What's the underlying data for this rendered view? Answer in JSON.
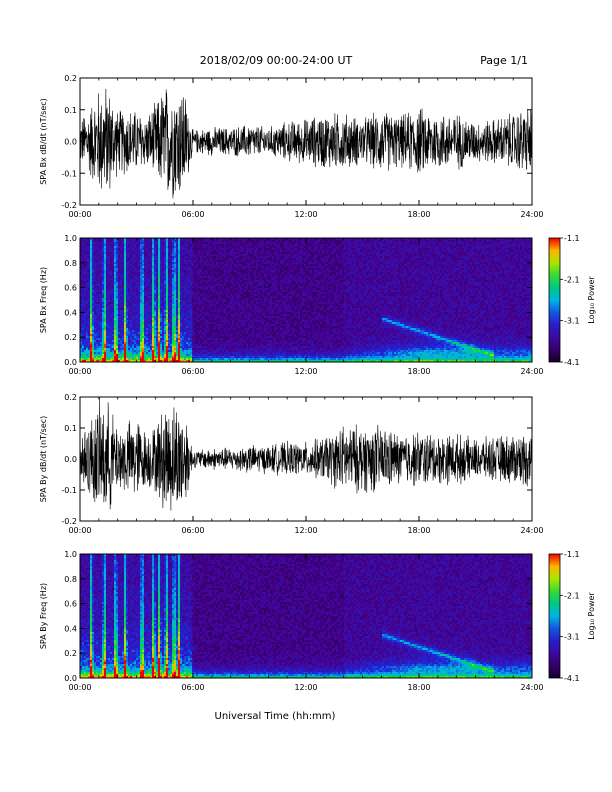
{
  "header": {
    "date_range": "2018/02/09  00:00-24:00 UT",
    "page": "Page 1/1"
  },
  "xaxis_title": "Universal Time (hh:mm)",
  "chart_data": [
    {
      "type": "line",
      "ylabel": "SPA Bx dB/dt (nT/sec)",
      "xlim": [
        0,
        24
      ],
      "ylim": [
        -0.2,
        0.2
      ],
      "x_ticks": [
        "00:00",
        "06:00",
        "12:00",
        "18:00",
        "24:00"
      ],
      "y_ticks": [
        "-0.2",
        "-0.1",
        "0.0",
        "0.1",
        "0.2"
      ],
      "series": [
        {
          "x": [
            0,
            0.5,
            1,
            1.5,
            2,
            2.5,
            3,
            3.5,
            4,
            4.5,
            5,
            5.5,
            6,
            7,
            8,
            9,
            10,
            11,
            12,
            13,
            14,
            15,
            16,
            17,
            18,
            19,
            20,
            21,
            22,
            23,
            24
          ],
          "amplitude": [
            0.08,
            0.12,
            0.19,
            0.2,
            0.11,
            0.12,
            0.11,
            0.09,
            0.13,
            0.2,
            0.2,
            0.2,
            0.04,
            0.05,
            0.05,
            0.06,
            0.05,
            0.07,
            0.08,
            0.1,
            0.1,
            0.08,
            0.11,
            0.09,
            0.12,
            0.1,
            0.1,
            0.07,
            0.08,
            0.1,
            0.13
          ]
        }
      ]
    },
    {
      "type": "heatmap",
      "ylabel": "SPA Bx Freq (Hz)",
      "colorbar_label": "Log₁₀ Power",
      "xlim": [
        0,
        24
      ],
      "ylim": [
        0.0,
        1.0
      ],
      "x_ticks": [
        "00:00",
        "06:00",
        "12:00",
        "18:00",
        "24:00"
      ],
      "y_ticks": [
        "0.0",
        "0.2",
        "0.4",
        "0.6",
        "0.8",
        "1.0"
      ],
      "colorbar_ticks": [
        "-1.1",
        "-2.1",
        "-3.1",
        "-4.1"
      ],
      "zlim": [
        -4.1,
        -1.1
      ]
    },
    {
      "type": "line",
      "ylabel": "SPA By dB/dt (nT/sec)",
      "xlim": [
        0,
        24
      ],
      "ylim": [
        -0.2,
        0.2
      ],
      "x_ticks": [
        "00:00",
        "06:00",
        "12:00",
        "18:00",
        "24:00"
      ],
      "y_ticks": [
        "-0.2",
        "-0.1",
        "0.0",
        "0.1",
        "0.2"
      ],
      "series": [
        {
          "x": [
            0,
            0.5,
            1,
            1.5,
            2,
            2.5,
            3,
            3.5,
            4,
            4.5,
            5,
            5.5,
            6,
            7,
            8,
            9,
            10,
            11,
            12,
            13,
            14,
            15,
            16,
            17,
            18,
            19,
            20,
            21,
            22,
            23,
            24
          ],
          "amplitude": [
            0.1,
            0.14,
            0.2,
            0.2,
            0.12,
            0.13,
            0.15,
            0.1,
            0.12,
            0.2,
            0.2,
            0.2,
            0.03,
            0.04,
            0.04,
            0.05,
            0.05,
            0.06,
            0.06,
            0.08,
            0.12,
            0.12,
            0.12,
            0.09,
            0.1,
            0.09,
            0.09,
            0.07,
            0.08,
            0.09,
            0.1
          ]
        }
      ]
    },
    {
      "type": "heatmap",
      "ylabel": "SPA By Freq (Hz)",
      "colorbar_label": "Log₁₀ Power",
      "xlim": [
        0,
        24
      ],
      "ylim": [
        0.0,
        1.0
      ],
      "x_ticks": [
        "00:00",
        "06:00",
        "12:00",
        "18:00",
        "24:00"
      ],
      "y_ticks": [
        "0.0",
        "0.2",
        "0.4",
        "0.6",
        "0.8",
        "1.0"
      ],
      "colorbar_ticks": [
        "-1.1",
        "-2.1",
        "-3.1",
        "-4.1"
      ],
      "zlim": [
        -4.1,
        -1.1
      ]
    }
  ]
}
